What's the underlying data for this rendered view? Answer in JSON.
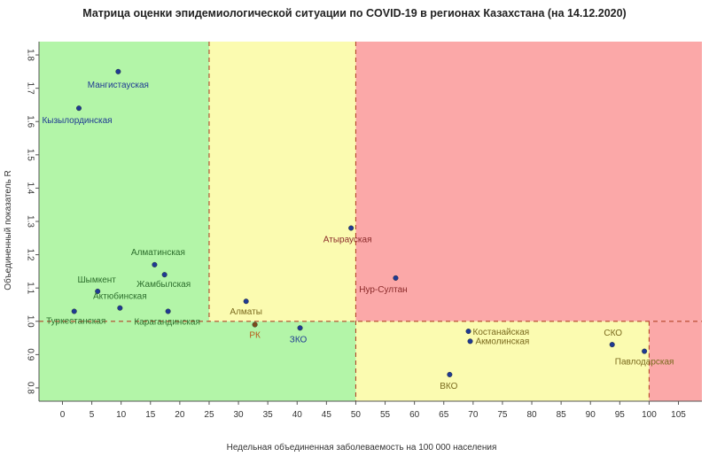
{
  "chart_data": {
    "type": "scatter",
    "title": "Матрица оценки эпидемиологической ситуации по COVID-19 в регионах Казахстана (на 14.12.2020)",
    "xlabel": "Недельная объединенная заболеваемость на 100 000 населения",
    "ylabel": "Объединенный показатель R",
    "xlim": [
      -4,
      109
    ],
    "ylim": [
      0.76,
      1.84
    ],
    "x_ticks": [
      0,
      5,
      10,
      15,
      20,
      25,
      30,
      35,
      40,
      45,
      50,
      55,
      60,
      65,
      70,
      75,
      80,
      85,
      90,
      95,
      100,
      105
    ],
    "y_ticks": [
      0.8,
      0.9,
      1.0,
      1.1,
      1.2,
      1.3,
      1.4,
      1.5,
      1.6,
      1.7,
      1.8
    ],
    "thresholds": {
      "x": [
        25,
        50,
        100
      ],
      "y": 1.0
    },
    "zones": [
      {
        "name": "green",
        "color": "#b3f5a8"
      },
      {
        "name": "yellow",
        "color": "#fbfbb0"
      },
      {
        "name": "red",
        "color": "#fba8a8"
      }
    ],
    "points": [
      {
        "label": "Мангистауская",
        "x": 9.5,
        "y": 1.75,
        "color": "#1f3a93",
        "text_color": "#1f3a93"
      },
      {
        "label": "Кызылординская",
        "x": 2.8,
        "y": 1.64,
        "color": "#1f3a93",
        "text_color": "#1f3a93"
      },
      {
        "label": "Алматинская",
        "x": 15.7,
        "y": 1.17,
        "color": "#1f3a93",
        "text_color": "#2d6e2d"
      },
      {
        "label": "Жамбылская",
        "x": 17.4,
        "y": 1.14,
        "color": "#1f3a93",
        "text_color": "#2d6e2d"
      },
      {
        "label": "Шымкент",
        "x": 6.0,
        "y": 1.09,
        "color": "#1f3a93",
        "text_color": "#2d6e2d"
      },
      {
        "label": "Актюбинская",
        "x": 9.8,
        "y": 1.04,
        "color": "#1f3a93",
        "text_color": "#2d6e2d"
      },
      {
        "label": "Туркестанская",
        "x": 2.0,
        "y": 1.03,
        "color": "#1f3a93",
        "text_color": "#2d6e2d"
      },
      {
        "label": "Карагандинская",
        "x": 18.0,
        "y": 1.03,
        "color": "#1f3a93",
        "text_color": "#2d6e2d"
      },
      {
        "label": "Алматы",
        "x": 31.3,
        "y": 1.06,
        "color": "#1f3a93",
        "text_color": "#7a6a1e"
      },
      {
        "label": "РК",
        "x": 32.8,
        "y": 0.99,
        "color": "#7a4a1e",
        "text_color": "#b85a1a"
      },
      {
        "label": "ЗКО",
        "x": 40.5,
        "y": 0.98,
        "color": "#1f3a93",
        "text_color": "#1f3a93"
      },
      {
        "label": "Атырауская",
        "x": 49.2,
        "y": 1.28,
        "color": "#1f3a93",
        "text_color": "#8a2a2a"
      },
      {
        "label": "Нур-Султан",
        "x": 56.8,
        "y": 1.13,
        "color": "#1f3a93",
        "text_color": "#8a2a2a"
      },
      {
        "label": "Костанайская",
        "x": 69.2,
        "y": 0.97,
        "color": "#1f3a93",
        "text_color": "#7a6a1e"
      },
      {
        "label": "Акмолинская",
        "x": 69.5,
        "y": 0.94,
        "color": "#1f3a93",
        "text_color": "#7a6a1e"
      },
      {
        "label": "ВКО",
        "x": 66.0,
        "y": 0.84,
        "color": "#1f3a93",
        "text_color": "#7a6a1e"
      },
      {
        "label": "СКО",
        "x": 93.7,
        "y": 0.93,
        "color": "#1f3a93",
        "text_color": "#7a6a1e"
      },
      {
        "label": "Павлодарская",
        "x": 99.2,
        "y": 0.91,
        "color": "#1f3a93",
        "text_color": "#7a6a1e"
      }
    ]
  }
}
